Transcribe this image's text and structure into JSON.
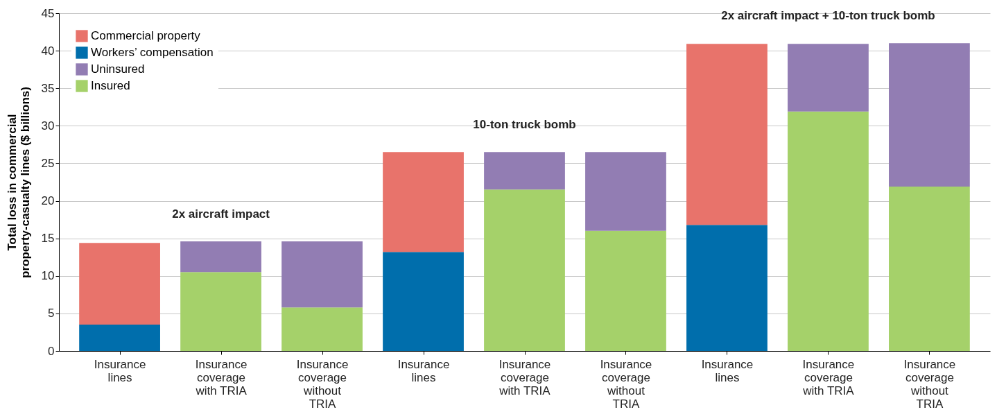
{
  "chart_data": {
    "type": "bar",
    "stacked": true,
    "ylabel": "Total loss in commercial property-casualty lines ($ billions)",
    "categories": [
      "Insurance lines",
      "Insurance coverage with TRIA",
      "Insurance coverage without TRIA",
      "Insurance lines",
      "Insurance coverage with TRIA",
      "Insurance coverage without TRIA",
      "Insurance lines",
      "Insurance coverage with TRIA",
      "Insurance coverage without TRIA"
    ],
    "series": [
      {
        "name": "Insured",
        "color": "#a5d16a",
        "values": [
          null,
          10.5,
          5.8,
          null,
          21.5,
          16.0,
          null,
          31.9,
          21.9
        ]
      },
      {
        "name": "Uninsured",
        "color": "#927db3",
        "values": [
          null,
          4.1,
          8.8,
          null,
          5.0,
          10.5,
          null,
          9.0,
          19.1
        ]
      },
      {
        "name": "Workers’ compensation",
        "color": "#006eac",
        "values": [
          3.5,
          null,
          null,
          13.2,
          null,
          null,
          16.8,
          null,
          null
        ]
      },
      {
        "name": "Commercial property",
        "color": "#e8736b",
        "values": [
          10.9,
          null,
          null,
          13.3,
          null,
          null,
          24.1,
          null,
          null
        ]
      }
    ],
    "annotations": [
      "2x aircraft impact",
      "10-ton truck bomb",
      "2x aircraft impact + 10-ton truck bomb"
    ],
    "ylim": [
      0,
      45
    ],
    "yticks": [
      0,
      5,
      10,
      15,
      20,
      25,
      30,
      35,
      40,
      45
    ],
    "grid": "y",
    "legend": "top left"
  }
}
